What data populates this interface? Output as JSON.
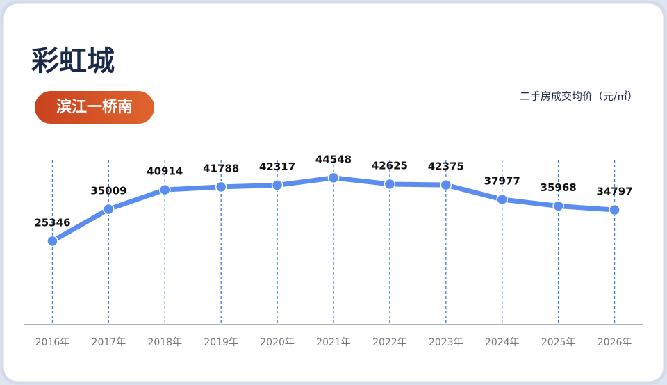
{
  "chart_data": {
    "type": "line",
    "title": "彩虹城",
    "subtitle": "滨江一桥南",
    "y_label": "二手房成交均价（元/㎡）",
    "categories": [
      "2016年",
      "2017年",
      "2018年",
      "2019年",
      "2020年",
      "2021年",
      "2022年",
      "2023年",
      "2024年",
      "2025年",
      "2026年"
    ],
    "values": [
      25346,
      35009,
      40914,
      41788,
      42317,
      44548,
      42625,
      42375,
      37977,
      35968,
      34797
    ],
    "color": "#5b8def",
    "ylim": [
      0,
      50000
    ]
  }
}
